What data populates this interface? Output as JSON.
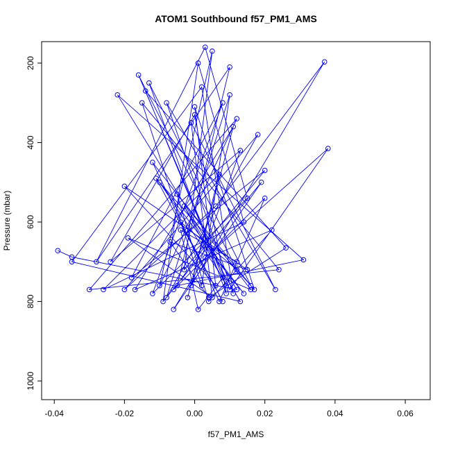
{
  "chart_data": {
    "type": "line",
    "title": "ATOM1 Southbound f57_PM1_AMS",
    "x_label": "f57_PM1_AMS",
    "y_label": "Pressure (mbar)",
    "color": "#0000ff",
    "markers": true,
    "x": [
      -0.039,
      -0.035,
      0.012,
      -0.022,
      0.031,
      -0.005,
      0.01,
      -0.028,
      0.003,
      0.015,
      -0.012,
      0.008,
      -0.018,
      0.02,
      -0.003,
      0.005,
      -0.01,
      0.012,
      -0.03,
      0.024,
      -0.015,
      0.002,
      0.01,
      -0.008,
      0.018,
      -0.02,
      0.006,
      0.037,
      -0.001,
      0.013,
      -0.024,
      0.0,
      0.009,
      -0.013,
      0.016,
      -0.005,
      0.004,
      0.022,
      -0.017,
      0.011,
      -0.002,
      0.007,
      -0.026,
      0.014,
      0.001,
      -0.009,
      0.019,
      -0.006,
      0.003,
      0.038,
      0.01,
      -0.016,
      0.012,
      -0.004,
      0.008,
      -0.011,
      0.017,
      0.0,
      0.006,
      -0.02,
      0.015,
      -0.007,
      0.004,
      0.026,
      -0.014,
      0.009,
      -0.003,
      0.013,
      -0.035,
      0.002,
      0.011,
      -0.008,
      0.023,
      -0.001,
      0.005,
      -0.019,
      0.016,
      -0.012,
      0.007,
      0.02,
      -0.006,
      0.003,
      0.014,
      -0.01,
      0.008,
      0.001,
      -0.004,
      0.012
    ],
    "values": [
      672,
      688,
      770,
      280,
      695,
      760,
      210,
      700,
      160,
      540,
      780,
      300,
      740,
      470,
      720,
      170,
      760,
      340,
      770,
      720,
      300,
      760,
      280,
      790,
      380,
      770,
      560,
      197,
      760,
      420,
      700,
      330,
      780,
      250,
      760,
      530,
      800,
      620,
      770,
      360,
      790,
      480,
      770,
      600,
      200,
      800,
      500,
      820,
      690,
      415,
      770,
      230,
      720,
      600,
      800,
      490,
      770,
      310,
      760,
      510,
      720,
      650,
      790,
      665,
      270,
      760,
      560,
      800,
      700,
      260,
      780,
      300,
      770,
      350,
      790,
      640,
      770,
      450,
      800,
      540,
      770,
      660,
      780,
      500,
      740,
      820,
      620,
      700
    ],
    "xlim": [
      -0.0436,
      0.0671
    ],
    "xticks": [
      -0.04,
      -0.02,
      {
        "value": 0,
        "label": "0.00"
      },
      0.02,
      0.04,
      0.06
    ],
    "ylim": [
      1047,
      146
    ],
    "yticks": [
      200,
      400,
      600,
      800,
      1000
    ]
  }
}
